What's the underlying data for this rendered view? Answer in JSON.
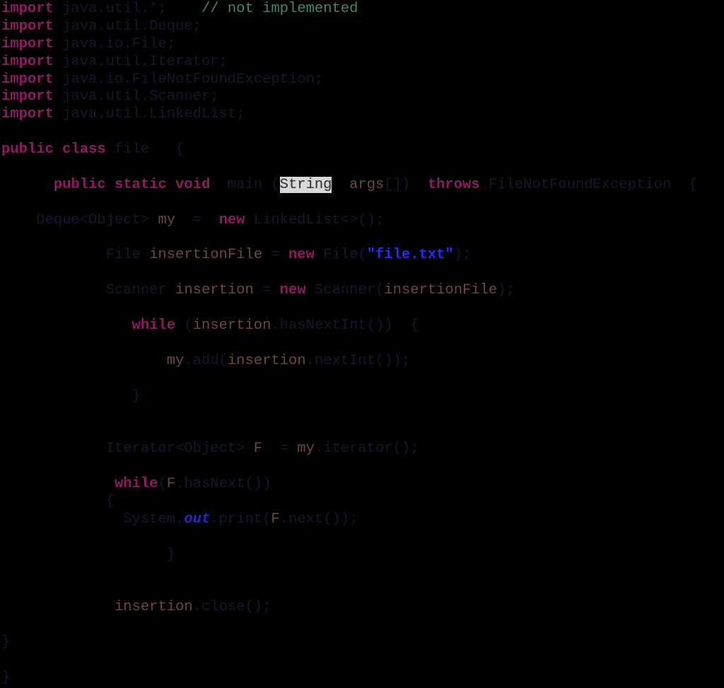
{
  "app": {
    "type": "code-editor-viewport",
    "language": "java",
    "background": "#000000"
  },
  "colors": {
    "keyword": "#8e1a63",
    "plain_code": "#14182e",
    "variable": "#6e4640",
    "string_literal": "#2a2aff",
    "comment": "#3f8a6a",
    "static_field": "#2525cc",
    "occurrence_highlight_bg": "#d8d8d8",
    "occurrence_highlight_text": "#2b2b2b"
  },
  "token_legend": {
    "kw": "keyword",
    "pl": "plain-code",
    "var": "variable",
    "str": "string-literal",
    "com": "comment",
    "fld": "static-field",
    "hl": "highlighted-occurrence"
  },
  "code": {
    "lines": [
      {
        "s": [
          [
            "kw",
            "import"
          ],
          [
            "pl",
            " java.util.*;    "
          ],
          [
            "com",
            "// not implemented"
          ]
        ]
      },
      {
        "s": [
          [
            "kw",
            "import"
          ],
          [
            "pl",
            " java.util.Deque;"
          ]
        ]
      },
      {
        "s": [
          [
            "kw",
            "import"
          ],
          [
            "pl",
            " java.io.File;"
          ]
        ]
      },
      {
        "s": [
          [
            "kw",
            "import"
          ],
          [
            "pl",
            " java.util.Iterator;"
          ]
        ]
      },
      {
        "s": [
          [
            "kw",
            "import"
          ],
          [
            "pl",
            " java.io.FileNotFoundException;"
          ]
        ]
      },
      {
        "s": [
          [
            "kw",
            "import"
          ],
          [
            "pl",
            " java.util.Scanner;"
          ]
        ]
      },
      {
        "s": [
          [
            "kw",
            "import"
          ],
          [
            "pl",
            " java.util.LinkedList;"
          ]
        ]
      },
      {
        "s": []
      },
      {
        "s": [
          [
            "kw",
            "public class"
          ],
          [
            "pl",
            " file   {"
          ]
        ]
      },
      {
        "s": []
      },
      {
        "s": [
          [
            "pl",
            "      "
          ],
          [
            "kw",
            "public static void"
          ],
          [
            "pl",
            "  main ("
          ],
          [
            "hl",
            "String"
          ],
          [
            "pl",
            "  "
          ],
          [
            "var",
            "args"
          ],
          [
            "pl",
            "[])  "
          ],
          [
            "kw",
            "throws"
          ],
          [
            "pl",
            " FileNotFoundException  {"
          ]
        ]
      },
      {
        "s": []
      },
      {
        "s": [
          [
            "pl",
            "    Deque<Object> "
          ],
          [
            "var",
            "my"
          ],
          [
            "pl",
            "  =  "
          ],
          [
            "kw",
            "new"
          ],
          [
            "pl",
            " LinkedList<>();"
          ]
        ]
      },
      {
        "s": []
      },
      {
        "s": [
          [
            "pl",
            "            File "
          ],
          [
            "var",
            "insertionFile"
          ],
          [
            "pl",
            " = "
          ],
          [
            "kw",
            "new"
          ],
          [
            "pl",
            " File("
          ],
          [
            "str",
            "\"file.txt\""
          ],
          [
            "pl",
            ");"
          ]
        ]
      },
      {
        "s": []
      },
      {
        "s": [
          [
            "pl",
            "            Scanner "
          ],
          [
            "var",
            "insertion"
          ],
          [
            "pl",
            " = "
          ],
          [
            "kw",
            "new"
          ],
          [
            "pl",
            " Scanner("
          ],
          [
            "var",
            "insertionFile"
          ],
          [
            "pl",
            ");"
          ]
        ]
      },
      {
        "s": []
      },
      {
        "s": [
          [
            "pl",
            "               "
          ],
          [
            "kw",
            "while"
          ],
          [
            "pl",
            " ("
          ],
          [
            "var",
            "insertion"
          ],
          [
            "pl",
            ".hasNextInt())  {"
          ]
        ]
      },
      {
        "s": []
      },
      {
        "s": [
          [
            "pl",
            "                   "
          ],
          [
            "var",
            "my"
          ],
          [
            "pl",
            ".add("
          ],
          [
            "var",
            "insertion"
          ],
          [
            "pl",
            ".nextInt());"
          ]
        ]
      },
      {
        "s": []
      },
      {
        "s": [
          [
            "pl",
            "               }"
          ]
        ]
      },
      {
        "s": []
      },
      {
        "s": []
      },
      {
        "s": [
          [
            "pl",
            "            Iterator<Object> "
          ],
          [
            "var",
            "F"
          ],
          [
            "pl",
            "  = "
          ],
          [
            "var",
            "my"
          ],
          [
            "pl",
            ".iterator();"
          ]
        ]
      },
      {
        "s": []
      },
      {
        "s": [
          [
            "pl",
            "             "
          ],
          [
            "kw",
            "while"
          ],
          [
            "pl",
            "("
          ],
          [
            "var",
            "F"
          ],
          [
            "pl",
            ".hasNext())"
          ]
        ]
      },
      {
        "s": [
          [
            "pl",
            "            {"
          ]
        ]
      },
      {
        "s": [
          [
            "pl",
            "              System."
          ],
          [
            "fld",
            "out"
          ],
          [
            "pl",
            ".print("
          ],
          [
            "var",
            "F"
          ],
          [
            "pl",
            ".next());"
          ]
        ]
      },
      {
        "s": []
      },
      {
        "s": [
          [
            "pl",
            "                   }"
          ]
        ]
      },
      {
        "s": []
      },
      {
        "s": []
      },
      {
        "s": [
          [
            "pl",
            "             "
          ],
          [
            "var",
            "insertion"
          ],
          [
            "pl",
            ".close();"
          ]
        ]
      },
      {
        "s": []
      },
      {
        "s": [
          [
            "pl",
            "}"
          ]
        ]
      },
      {
        "s": []
      },
      {
        "s": [
          [
            "pl",
            "}"
          ]
        ]
      }
    ]
  }
}
